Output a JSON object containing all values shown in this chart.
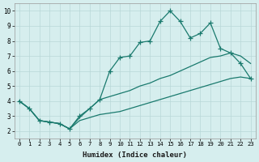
{
  "xlabel": "Humidex (Indice chaleur)",
  "xlim": [
    -0.5,
    23.5
  ],
  "ylim": [
    1.5,
    10.5
  ],
  "xticks": [
    0,
    1,
    2,
    3,
    4,
    5,
    6,
    7,
    8,
    9,
    10,
    11,
    12,
    13,
    14,
    15,
    16,
    17,
    18,
    19,
    20,
    21,
    22,
    23
  ],
  "yticks": [
    2,
    3,
    4,
    5,
    6,
    7,
    8,
    9,
    10
  ],
  "line_color": "#1a7a6e",
  "bg_color": "#d6eeee",
  "grid_color": "#b8d8d8",
  "line1_x": [
    0,
    1,
    2,
    3,
    4,
    5,
    6,
    7,
    8,
    9,
    10,
    11,
    12,
    13,
    14,
    15,
    16,
    17,
    18,
    19,
    20,
    21,
    22,
    23
  ],
  "line1_y": [
    4.0,
    3.5,
    2.7,
    2.6,
    2.5,
    2.15,
    3.0,
    3.5,
    4.1,
    6.0,
    6.9,
    7.0,
    7.9,
    8.0,
    9.3,
    10.0,
    9.3,
    8.2,
    8.5,
    9.2,
    7.5,
    7.2,
    6.5,
    5.5
  ],
  "line2_x": [
    0,
    1,
    2,
    3,
    4,
    5,
    6,
    7,
    8,
    9,
    10,
    11,
    12,
    13,
    14,
    15,
    16,
    17,
    18,
    19,
    20,
    21,
    22,
    23
  ],
  "line2_y": [
    4.0,
    3.5,
    2.7,
    2.6,
    2.5,
    2.15,
    2.9,
    3.5,
    4.1,
    4.3,
    4.5,
    4.7,
    5.0,
    5.2,
    5.5,
    5.7,
    6.0,
    6.3,
    6.6,
    6.9,
    7.0,
    7.2,
    7.0,
    6.5
  ],
  "line3_x": [
    0,
    1,
    2,
    3,
    4,
    5,
    6,
    7,
    8,
    9,
    10,
    11,
    12,
    13,
    14,
    15,
    16,
    17,
    18,
    19,
    20,
    21,
    22,
    23
  ],
  "line3_y": [
    4.0,
    3.5,
    2.7,
    2.6,
    2.5,
    2.15,
    2.7,
    2.9,
    3.1,
    3.2,
    3.3,
    3.5,
    3.7,
    3.9,
    4.1,
    4.3,
    4.5,
    4.7,
    4.9,
    5.1,
    5.3,
    5.5,
    5.6,
    5.5
  ]
}
